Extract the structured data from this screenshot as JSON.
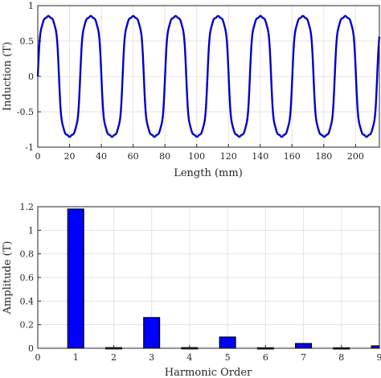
{
  "chart_data": [
    {
      "type": "line",
      "xlabel": "Length (mm)",
      "ylabel": "Induction (T)",
      "xlim": [
        0,
        215
      ],
      "ylim": [
        -1,
        1
      ],
      "grid": true,
      "color": "#0000cc",
      "xticks": [
        0,
        20,
        40,
        60,
        80,
        100,
        120,
        140,
        160,
        180,
        200
      ],
      "yticks": [
        -1,
        -0.5,
        0,
        0.5,
        1
      ],
      "xtick_labels": [
        "0",
        "20",
        "40",
        "60",
        "80",
        "100",
        "120",
        "140",
        "160",
        "180",
        "200"
      ],
      "ytick_labels": [
        "-1",
        "-0.5",
        "0",
        "0.5",
        "1"
      ],
      "period_mm": 26.7,
      "amplitude": 0.98,
      "harmonics": {
        "h3": 0.22,
        "h5": 0.08,
        "h7": 0.035,
        "h9": 0.02
      },
      "x": [
        0,
        6.7,
        13.4,
        20.0,
        26.7,
        33.4,
        40.1,
        46.7,
        53.4,
        60.1,
        66.8,
        73.5,
        80.1,
        86.8,
        93.5,
        100.2,
        106.8,
        113.5,
        120.2,
        126.9,
        133.5,
        140.2,
        146.9,
        153.6,
        160.2,
        166.9,
        173.6,
        180.3,
        186.9,
        193.6,
        200.3,
        207.0,
        213.6
      ],
      "y": [
        0,
        0.98,
        0,
        -0.98,
        0,
        0.98,
        0,
        -0.98,
        0,
        0.98,
        0,
        -0.98,
        0,
        0.98,
        0,
        -0.98,
        0,
        0.98,
        0,
        -0.98,
        0,
        0.98,
        0,
        -0.98,
        0,
        0.98,
        0,
        -0.98,
        0,
        0.98,
        0,
        -0.98,
        0
      ]
    },
    {
      "type": "bar",
      "xlabel": "Harmonic Order",
      "ylabel": "Amplitude (T)",
      "xlim": [
        0,
        9
      ],
      "ylim": [
        0,
        1.2
      ],
      "grid": true,
      "color": "#0000ff",
      "categories": [
        1,
        2,
        3,
        4,
        5,
        6,
        7,
        8,
        9
      ],
      "values": [
        1.18,
        0.005,
        0.26,
        0.005,
        0.095,
        0.004,
        0.04,
        0.004,
        0.02
      ],
      "xtick_labels": [
        "0",
        "1",
        "2",
        "3",
        "4",
        "5",
        "6",
        "7",
        "8",
        "9"
      ],
      "yticks": [
        0,
        0.2,
        0.4,
        0.6,
        0.8,
        1,
        1.2
      ],
      "ytick_labels": [
        "0",
        "0.2",
        "0.4",
        "0.6",
        "0.8",
        "1",
        "1.2"
      ]
    }
  ]
}
